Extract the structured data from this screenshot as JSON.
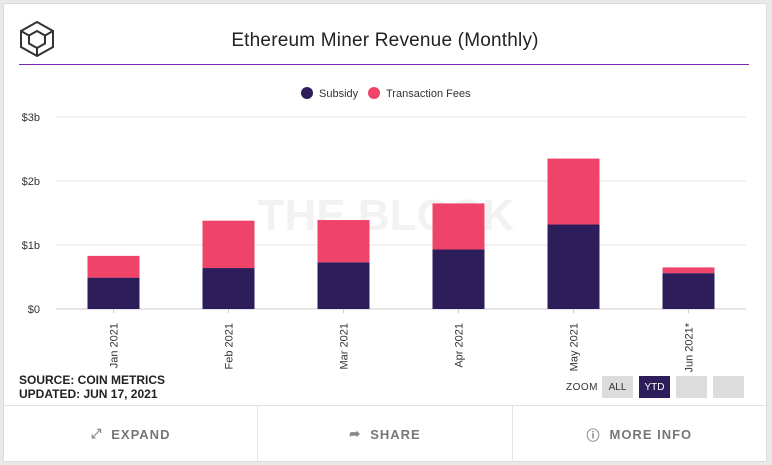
{
  "title": "Ethereum Miner Revenue (Monthly)",
  "watermark": "THE BLOCK",
  "logo_icon": "the-block-cube-logo",
  "source_line": "SOURCE: COIN METRICS",
  "updated_line": "UPDATED: JUN 17, 2021",
  "zoom": {
    "label": "ZOOM",
    "buttons": [
      {
        "label": "ALL",
        "active": false
      },
      {
        "label": "YTD",
        "active": true
      },
      {
        "label": "",
        "active": false
      },
      {
        "label": "",
        "active": false
      }
    ]
  },
  "footer": {
    "expand": {
      "label": "EXPAND",
      "icon": "expand-icon"
    },
    "share": {
      "label": "SHARE",
      "icon": "share-icon"
    },
    "more_info": {
      "label": "MORE INFO",
      "icon": "info-icon"
    }
  },
  "colors": {
    "subsidy": "#2d1e5b",
    "fees": "#ef4369",
    "title_rule": "#7b2bb8",
    "grid": "#e6e6e6"
  },
  "chart_data": {
    "type": "bar",
    "stacked": true,
    "title": "Ethereum Miner Revenue (Monthly)",
    "categories": [
      "Jan 2021",
      "Feb 2021",
      "Mar 2021",
      "Apr 2021",
      "May 2021",
      "Jun 2021*"
    ],
    "series": [
      {
        "name": "Subsidy",
        "values": [
          0.49,
          0.64,
          0.73,
          0.93,
          1.32,
          0.56
        ]
      },
      {
        "name": "Transaction Fees",
        "values": [
          0.34,
          0.74,
          0.66,
          0.72,
          1.03,
          0.09
        ]
      }
    ],
    "ylim": [
      0,
      3
    ],
    "yticks": [
      0,
      1,
      2,
      3
    ],
    "ytick_labels": [
      "$0",
      "$1b",
      "$2b",
      "$3b"
    ],
    "unit": "USD billions",
    "grid": true,
    "legend_position": "top-center"
  }
}
